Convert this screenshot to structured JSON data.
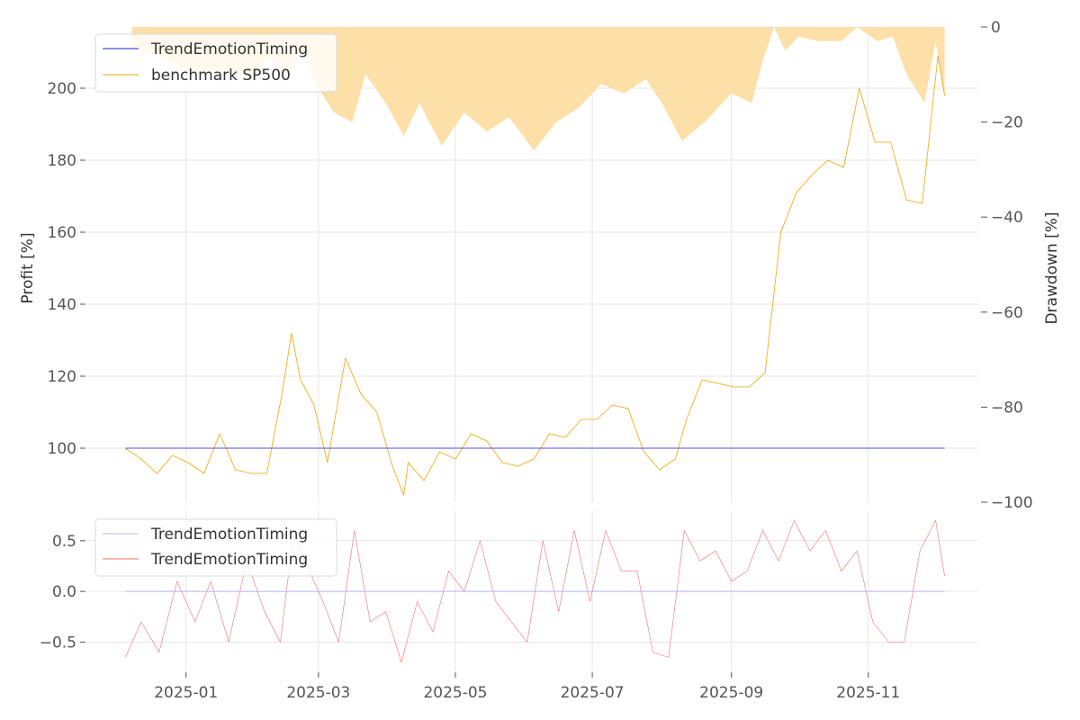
{
  "colors": {
    "strategy": "#1f1fd6",
    "benchmark": "#f0a500",
    "drawdown_fill": "#fde0a8",
    "osc_strategy": "#b9b9f0",
    "osc_signal": "#f07070",
    "grid": "#e6e6e6",
    "tick_text": "#555555"
  },
  "chart_data": [
    {
      "type": "line",
      "panel": "top",
      "ylabel": "Profit [%]",
      "y2label": "Drawdown [%]",
      "ylim": [
        85,
        217
      ],
      "y2lim": [
        -100,
        0
      ],
      "yticks": [
        100,
        120,
        140,
        160,
        180,
        200
      ],
      "ytick_labels": [
        "100",
        "120",
        "140",
        "160",
        "180",
        "200"
      ],
      "y2ticks": [
        0,
        -20,
        -40,
        -60,
        -80,
        -100
      ],
      "y2tick_labels": [
        "0",
        "−20",
        "−40",
        "−60",
        "−80",
        "−100"
      ],
      "grid": true,
      "legend": {
        "position": "top-left",
        "entries": [
          "TrendEmotionTiming",
          "benchmark SP500"
        ]
      },
      "series": [
        {
          "name": "TrendEmotionTiming",
          "x": [
            "2024-12-05",
            "2025-12-05"
          ],
          "values": [
            100,
            100
          ]
        },
        {
          "name": "benchmark SP500",
          "x": [
            "2024-12-05",
            "2024-12-12",
            "2024-12-19",
            "2024-12-26",
            "2025-01-02",
            "2025-01-09",
            "2025-01-16",
            "2025-01-23",
            "2025-01-30",
            "2025-02-06",
            "2025-02-13",
            "2025-02-17",
            "2025-02-21",
            "2025-02-27",
            "2025-03-05",
            "2025-03-13",
            "2025-03-20",
            "2025-03-27",
            "2025-04-03",
            "2025-04-08",
            "2025-04-10",
            "2025-04-17",
            "2025-04-24",
            "2025-05-01",
            "2025-05-08",
            "2025-05-15",
            "2025-05-22",
            "2025-05-29",
            "2025-06-05",
            "2025-06-12",
            "2025-06-19",
            "2025-06-26",
            "2025-07-03",
            "2025-07-10",
            "2025-07-17",
            "2025-07-24",
            "2025-07-31",
            "2025-08-07",
            "2025-08-12",
            "2025-08-19",
            "2025-08-26",
            "2025-09-02",
            "2025-09-09",
            "2025-09-16",
            "2025-09-23",
            "2025-09-30",
            "2025-10-07",
            "2025-10-14",
            "2025-10-21",
            "2025-10-28",
            "2025-11-04",
            "2025-11-11",
            "2025-11-18",
            "2025-11-25",
            "2025-12-02",
            "2025-12-05"
          ],
          "values": [
            100,
            97,
            93,
            98,
            96,
            93,
            104,
            94,
            93,
            93,
            116,
            132,
            119,
            112,
            96,
            125,
            115,
            110,
            95,
            87,
            96,
            91,
            99,
            97,
            104,
            102,
            96,
            95,
            97,
            104,
            103,
            108,
            108,
            112,
            111,
            99,
            94,
            97,
            108,
            119,
            118,
            117,
            117,
            121,
            160,
            171,
            176,
            180,
            178,
            200,
            185,
            185,
            169,
            168,
            209,
            198
          ]
        }
      ],
      "drawdown": {
        "name": "Drawdown",
        "x": [
          "2024-12-08",
          "2024-12-20",
          "2025-01-05",
          "2025-01-20",
          "2025-01-30",
          "2025-02-07",
          "2025-02-15",
          "2025-02-22",
          "2025-03-01",
          "2025-03-08",
          "2025-03-16",
          "2025-03-22",
          "2025-03-31",
          "2025-04-08",
          "2025-04-15",
          "2025-04-25",
          "2025-05-05",
          "2025-05-15",
          "2025-05-25",
          "2025-06-05",
          "2025-06-15",
          "2025-06-25",
          "2025-07-05",
          "2025-07-15",
          "2025-07-25",
          "2025-08-01",
          "2025-08-10",
          "2025-08-20",
          "2025-09-01",
          "2025-09-10",
          "2025-09-15",
          "2025-09-20",
          "2025-09-25",
          "2025-10-01",
          "2025-10-10",
          "2025-10-20",
          "2025-10-27",
          "2025-11-05",
          "2025-11-12",
          "2025-11-18",
          "2025-11-26",
          "2025-12-01",
          "2025-12-05"
        ],
        "values": [
          -4,
          -6,
          -10,
          -9,
          -11,
          -6,
          -10,
          -5,
          -13,
          -18,
          -20,
          -10,
          -16,
          -23,
          -16,
          -25,
          -18,
          -22,
          -19,
          -26,
          -20,
          -17,
          -12,
          -14,
          -11,
          -16,
          -24,
          -20,
          -14,
          -16,
          -7,
          0,
          -5,
          -2,
          -3,
          -3,
          0,
          -3,
          -2,
          -10,
          -16,
          -3,
          -15
        ]
      }
    },
    {
      "type": "line",
      "panel": "bottom",
      "ylim": [
        -0.78,
        0.8
      ],
      "yticks": [
        -0.5,
        0.0,
        0.5
      ],
      "ytick_labels": [
        "−0.5",
        "0.0",
        "0.5"
      ],
      "xticks": [
        "2025-01-01",
        "2025-03-01",
        "2025-05-01",
        "2025-07-01",
        "2025-09-01",
        "2025-11-01"
      ],
      "xtick_labels": [
        "2025-01",
        "2025-03",
        "2025-05",
        "2025-07",
        "2025-09",
        "2025-11"
      ],
      "grid": true,
      "legend": {
        "position": "top-left",
        "entries": [
          "TrendEmotionTiming",
          "TrendEmotionTiming"
        ]
      },
      "series": [
        {
          "name": "TrendEmotionTiming",
          "x": [
            "2024-12-05",
            "2025-12-05"
          ],
          "values": [
            0.0,
            0.0
          ]
        },
        {
          "name": "TrendEmotionTiming",
          "x": [
            "2024-12-05",
            "2024-12-12",
            "2024-12-20",
            "2024-12-28",
            "2025-01-05",
            "2025-01-12",
            "2025-01-20",
            "2025-01-28",
            "2025-02-05",
            "2025-02-12",
            "2025-02-18",
            "2025-02-25",
            "2025-03-03",
            "2025-03-10",
            "2025-03-17",
            "2025-03-24",
            "2025-03-31",
            "2025-04-07",
            "2025-04-14",
            "2025-04-21",
            "2025-04-28",
            "2025-05-05",
            "2025-05-12",
            "2025-05-19",
            "2025-05-26",
            "2025-06-02",
            "2025-06-09",
            "2025-06-16",
            "2025-06-23",
            "2025-06-30",
            "2025-07-07",
            "2025-07-14",
            "2025-07-21",
            "2025-07-28",
            "2025-08-04",
            "2025-08-11",
            "2025-08-18",
            "2025-08-25",
            "2025-09-01",
            "2025-09-08",
            "2025-09-15",
            "2025-09-22",
            "2025-09-29",
            "2025-10-06",
            "2025-10-13",
            "2025-10-20",
            "2025-10-27",
            "2025-11-03",
            "2025-11-10",
            "2025-11-17",
            "2025-11-24",
            "2025-12-01",
            "2025-12-05"
          ],
          "values": [
            -0.65,
            -0.3,
            -0.6,
            0.1,
            -0.3,
            0.1,
            -0.5,
            0.3,
            -0.2,
            -0.5,
            0.6,
            0.2,
            -0.1,
            -0.5,
            0.6,
            -0.3,
            -0.2,
            -0.7,
            -0.1,
            -0.4,
            0.2,
            0.0,
            0.5,
            -0.1,
            -0.3,
            -0.5,
            0.5,
            -0.2,
            0.6,
            -0.1,
            0.6,
            0.2,
            0.2,
            -0.6,
            -0.65,
            0.6,
            0.3,
            0.4,
            0.1,
            0.2,
            0.6,
            0.3,
            0.7,
            0.4,
            0.6,
            0.2,
            0.4,
            -0.3,
            -0.5,
            -0.5,
            0.4,
            0.7,
            0.15
          ]
        }
      ]
    }
  ]
}
